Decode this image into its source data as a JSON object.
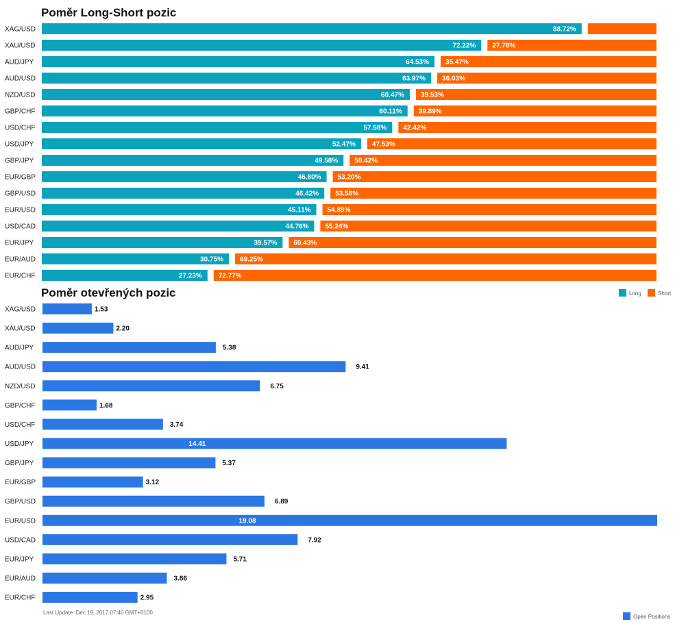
{
  "colors": {
    "long": "#0aa3bb",
    "short": "#ff6600",
    "open": "#2b78e4",
    "text": "#222222",
    "footer_text": "#666666"
  },
  "chart_data": [
    {
      "type": "bar",
      "orientation": "horizontal",
      "stacked_percent": true,
      "title": "Poměr Long-Short pozic",
      "categories": [
        "XAG/USD",
        "XAU/USD",
        "AUD/JPY",
        "AUD/USD",
        "NZD/USD",
        "GBP/CHF",
        "USD/CHF",
        "USD/JPY",
        "GBP/JPY",
        "EUR/GBP",
        "GBP/USD",
        "EUR/USD",
        "USD/CAD",
        "EUR/JPY",
        "EUR/AUD",
        "EUR/CHF"
      ],
      "series": [
        {
          "name": "Long",
          "values": [
            88.72,
            72.22,
            64.53,
            63.97,
            60.47,
            60.11,
            57.58,
            52.47,
            49.58,
            46.8,
            46.42,
            45.11,
            44.76,
            39.57,
            30.75,
            27.23
          ]
        },
        {
          "name": "Short",
          "values": [
            11.28,
            27.78,
            35.47,
            36.03,
            39.53,
            39.89,
            42.42,
            47.53,
            50.42,
            53.2,
            53.58,
            54.89,
            55.24,
            60.43,
            69.25,
            72.77
          ]
        }
      ],
      "labels": {
        "long": [
          "88.72%",
          "72.22%",
          "64.53%",
          "63.97%",
          "60.47%",
          "60.11%",
          "57.58%",
          "52.47%",
          "49.58%",
          "46.80%",
          "46.42%",
          "45.11%",
          "44.76%",
          "39.57%",
          "30.75%",
          "27.23%"
        ],
        "short": [
          "",
          "27.78%",
          "35.47%",
          "36.03%",
          "39.53%",
          "39.89%",
          "42.42%",
          "47.53%",
          "50.42%",
          "53.20%",
          "53.58%",
          "54.89%",
          "55.24%",
          "60.43%",
          "69.25%",
          "72.77%"
        ]
      },
      "legend": {
        "position": "right",
        "entries": [
          "Long",
          "Short"
        ]
      }
    },
    {
      "type": "bar",
      "orientation": "horizontal",
      "title": "Poměr otevřených pozic",
      "categories": [
        "XAG/USD",
        "XAU/USD",
        "AUD/JPY",
        "AUD/USD",
        "NZD/USD",
        "GBP/CHF",
        "USD/CHF",
        "USD/JPY",
        "GBP/JPY",
        "EUR/GBP",
        "GBP/USD",
        "EUR/USD",
        "USD/CAD",
        "EUR/JPY",
        "EUR/AUD",
        "EUR/CHF"
      ],
      "series": [
        {
          "name": "Open Positions",
          "values": [
            1.53,
            2.2,
            5.38,
            9.41,
            6.75,
            1.68,
            3.74,
            14.41,
            5.37,
            3.12,
            6.89,
            19.08,
            7.92,
            5.71,
            3.86,
            2.95
          ]
        }
      ],
      "labels": [
        "1.53",
        "2.20",
        "5.38",
        "9.41",
        "6.75",
        "1.68",
        "3.74",
        "14.41",
        "5.37",
        "3.12",
        "6.89",
        "19.08",
        "7.92",
        "5.71",
        "3.86",
        "2.95"
      ],
      "xlim": [
        0,
        19.08
      ],
      "legend": {
        "position": "bottom-right",
        "entries": [
          "Open Positions"
        ]
      }
    }
  ],
  "footer": {
    "last_update": "Last Update: Dec 19, 2017 07:40 GMT+0100"
  }
}
